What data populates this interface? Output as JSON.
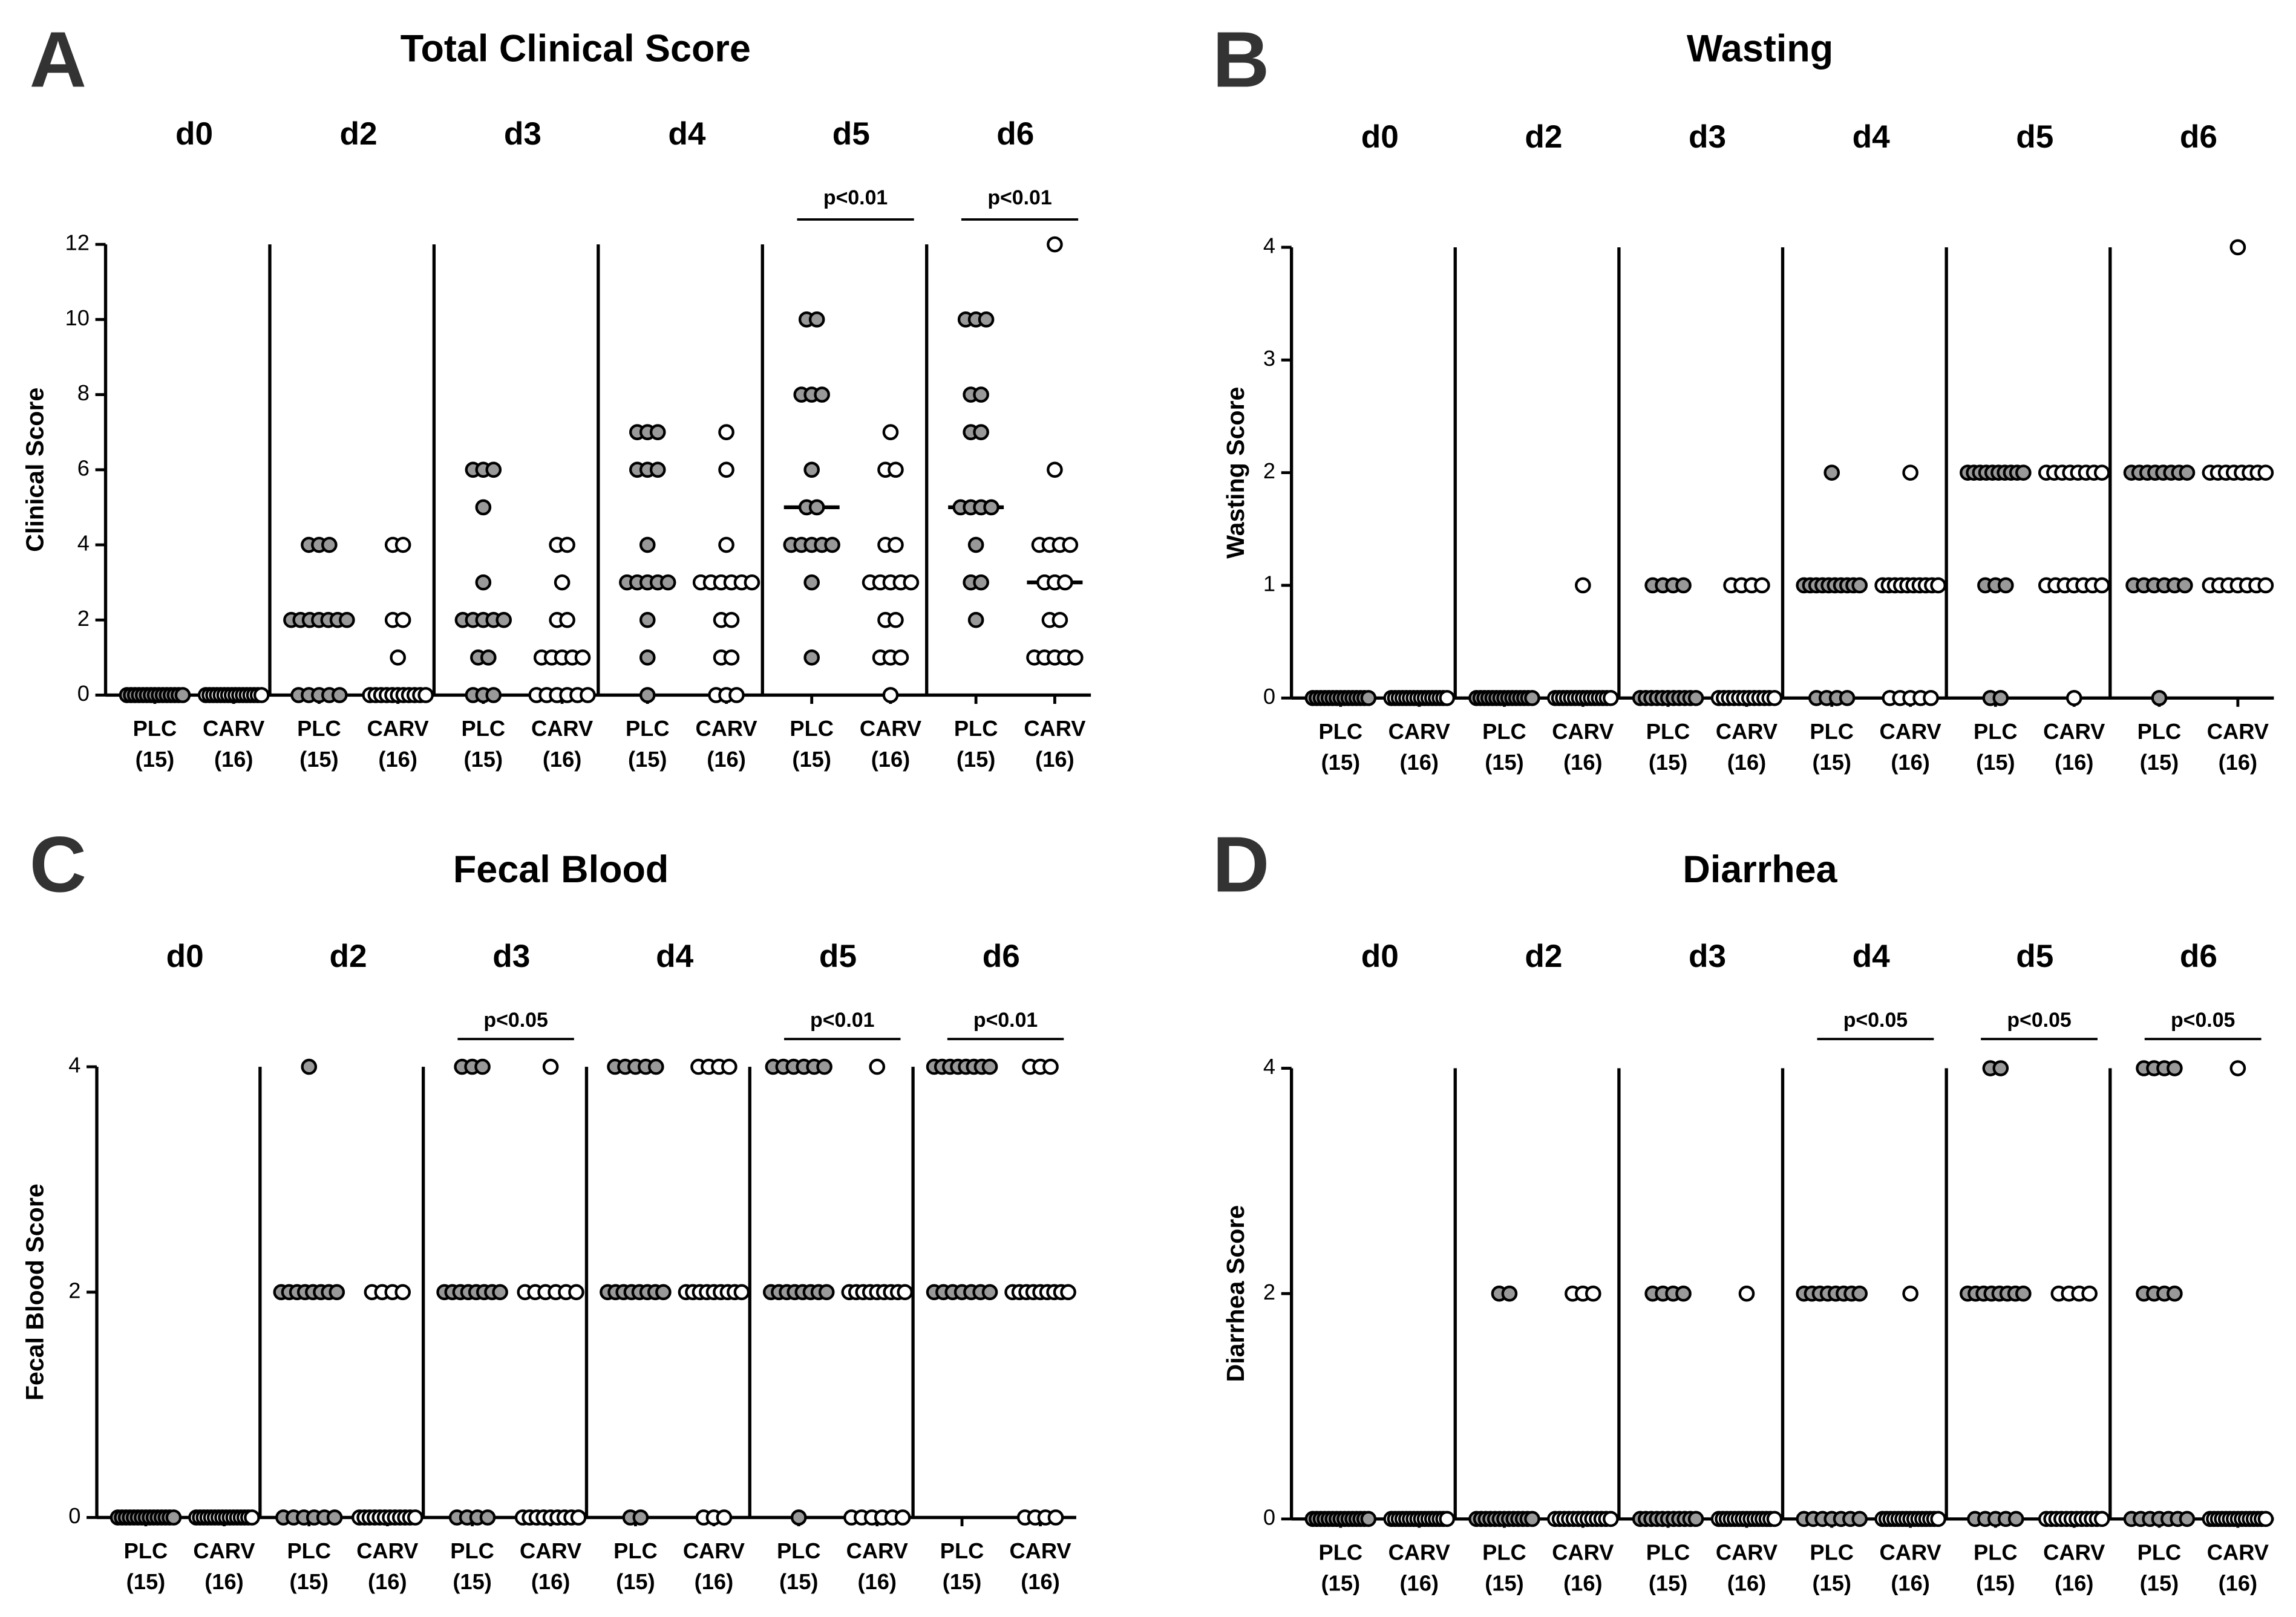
{
  "chart_data": [
    {
      "type": "dot",
      "panel": "A",
      "title": "Total Clinical Score",
      "y_label": "Clinical  Score",
      "categories": [
        "d0",
        "d2",
        "d3",
        "d4",
        "d5",
        "d6"
      ],
      "series": [
        {
          "name": "PLC",
          "n_label": "(15)",
          "color": "#999999",
          "values": [
            [
              0,
              0,
              0,
              0,
              0,
              0,
              0,
              0,
              0,
              0,
              0,
              0,
              0,
              0,
              0
            ],
            [
              4,
              4,
              4,
              2,
              2,
              2,
              2,
              2,
              2,
              2,
              0,
              0,
              0,
              0,
              0
            ],
            [
              6,
              6,
              6,
              5,
              3,
              2,
              2,
              2,
              2,
              2,
              1,
              1,
              0,
              0,
              0
            ],
            [
              7,
              7,
              7,
              6,
              6,
              6,
              4,
              3,
              3,
              3,
              3,
              3,
              2,
              1,
              0
            ],
            [
              10,
              10,
              8,
              8,
              8,
              6,
              5,
              5,
              4,
              4,
              4,
              4,
              4,
              3,
              1
            ],
            [
              10,
              10,
              10,
              8,
              8,
              7,
              7,
              5,
              5,
              5,
              5,
              4,
              3,
              3,
              2
            ]
          ],
          "medians": [
            0,
            2,
            2,
            3,
            5,
            5
          ]
        },
        {
          "name": "CARV",
          "n_label": "(16)",
          "color": "#ffffff",
          "values": [
            [
              0,
              0,
              0,
              0,
              0,
              0,
              0,
              0,
              0,
              0,
              0,
              0,
              0,
              0,
              0,
              0
            ],
            [
              4,
              4,
              2,
              2,
              1,
              0,
              0,
              0,
              0,
              0,
              0,
              0,
              0,
              0,
              0,
              0
            ],
            [
              4,
              4,
              3,
              2,
              2,
              1,
              1,
              1,
              1,
              1,
              0,
              0,
              0,
              0,
              0,
              0
            ],
            [
              7,
              6,
              4,
              3,
              3,
              3,
              3,
              3,
              3,
              2,
              2,
              1,
              1,
              0,
              0,
              0
            ],
            [
              7,
              6,
              6,
              4,
              4,
              3,
              3,
              3,
              3,
              3,
              2,
              2,
              1,
              1,
              1,
              0
            ],
            [
              12,
              6,
              4,
              4,
              4,
              4,
              3,
              3,
              3,
              2,
              2,
              1,
              1,
              1,
              1,
              1
            ]
          ],
          "medians": [
            0,
            0,
            1,
            3,
            3,
            3
          ]
        }
      ],
      "ylim": [
        0,
        12
      ],
      "yticks": [
        0,
        2,
        4,
        6,
        8,
        10,
        12
      ],
      "comparisons": [
        {
          "label": "p<0.01",
          "category": "d5"
        },
        {
          "label": "p<0.01",
          "category": "d6"
        }
      ]
    },
    {
      "type": "dot",
      "panel": "B",
      "title": "Wasting",
      "y_label": "Wasting  Score",
      "categories": [
        "d0",
        "d2",
        "d3",
        "d4",
        "d5",
        "d6"
      ],
      "series": [
        {
          "name": "PLC",
          "n_label": "(15)",
          "color": "#999999",
          "values": [
            [
              0,
              0,
              0,
              0,
              0,
              0,
              0,
              0,
              0,
              0,
              0,
              0,
              0,
              0,
              0
            ],
            [
              0,
              0,
              0,
              0,
              0,
              0,
              0,
              0,
              0,
              0,
              0,
              0,
              0,
              0,
              0
            ],
            [
              1,
              1,
              1,
              1,
              0,
              0,
              0,
              0,
              0,
              0,
              0,
              0,
              0,
              0,
              0
            ],
            [
              2,
              1,
              1,
              1,
              1,
              1,
              1,
              1,
              1,
              1,
              1,
              0,
              0,
              0,
              0
            ],
            [
              2,
              2,
              2,
              2,
              2,
              2,
              2,
              2,
              2,
              2,
              1,
              1,
              1,
              0,
              0
            ],
            [
              2,
              2,
              2,
              2,
              2,
              2,
              2,
              2,
              1,
              1,
              1,
              1,
              1,
              1,
              0
            ]
          ]
        },
        {
          "name": "CARV",
          "n_label": "(16)",
          "color": "#ffffff",
          "values": [
            [
              0,
              0,
              0,
              0,
              0,
              0,
              0,
              0,
              0,
              0,
              0,
              0,
              0,
              0,
              0,
              0
            ],
            [
              1,
              0,
              0,
              0,
              0,
              0,
              0,
              0,
              0,
              0,
              0,
              0,
              0,
              0,
              0,
              0
            ],
            [
              1,
              1,
              1,
              1,
              0,
              0,
              0,
              0,
              0,
              0,
              0,
              0,
              0,
              0,
              0,
              0
            ],
            [
              2,
              1,
              1,
              1,
              1,
              1,
              1,
              1,
              1,
              1,
              1,
              0,
              0,
              0,
              0,
              0
            ],
            [
              2,
              2,
              2,
              2,
              2,
              2,
              2,
              2,
              1,
              1,
              1,
              1,
              1,
              1,
              1,
              0
            ],
            [
              4,
              2,
              2,
              2,
              2,
              2,
              2,
              2,
              2,
              1,
              1,
              1,
              1,
              1,
              1,
              1
            ]
          ]
        }
      ],
      "ylim": [
        0,
        4
      ],
      "yticks": [
        0,
        1,
        2,
        3,
        4
      ],
      "comparisons": []
    },
    {
      "type": "dot",
      "panel": "C",
      "title": "Fecal Blood",
      "y_label": "Fecal Blood Score",
      "categories": [
        "d0",
        "d2",
        "d3",
        "d4",
        "d5",
        "d6"
      ],
      "series": [
        {
          "name": "PLC",
          "n_label": "(15)",
          "color": "#999999",
          "values": [
            [
              0,
              0,
              0,
              0,
              0,
              0,
              0,
              0,
              0,
              0,
              0,
              0,
              0,
              0,
              0
            ],
            [
              4,
              2,
              2,
              2,
              2,
              2,
              2,
              2,
              2,
              0,
              0,
              0,
              0,
              0,
              0
            ],
            [
              4,
              4,
              4,
              2,
              2,
              2,
              2,
              2,
              2,
              2,
              2,
              0,
              0,
              0,
              0
            ],
            [
              4,
              4,
              4,
              4,
              4,
              2,
              2,
              2,
              2,
              2,
              2,
              2,
              2,
              0,
              0
            ],
            [
              4,
              4,
              4,
              4,
              4,
              4,
              2,
              2,
              2,
              2,
              2,
              2,
              2,
              2,
              0
            ],
            [
              4,
              4,
              4,
              4,
              4,
              4,
              4,
              4,
              2,
              2,
              2,
              2,
              2,
              2,
              2
            ]
          ]
        },
        {
          "name": "CARV",
          "n_label": "(16)",
          "color": "#ffffff",
          "values": [
            [
              0,
              0,
              0,
              0,
              0,
              0,
              0,
              0,
              0,
              0,
              0,
              0,
              0,
              0,
              0,
              0
            ],
            [
              2,
              2,
              2,
              2,
              0,
              0,
              0,
              0,
              0,
              0,
              0,
              0,
              0,
              0,
              0,
              0
            ],
            [
              4,
              2,
              2,
              2,
              2,
              2,
              2,
              0,
              0,
              0,
              0,
              0,
              0,
              0,
              0,
              0
            ],
            [
              4,
              4,
              4,
              4,
              2,
              2,
              2,
              2,
              2,
              2,
              2,
              2,
              2,
              0,
              0,
              0
            ],
            [
              4,
              2,
              2,
              2,
              2,
              2,
              2,
              2,
              2,
              2,
              0,
              0,
              0,
              0,
              0,
              0
            ],
            [
              4,
              4,
              4,
              2,
              2,
              2,
              2,
              2,
              2,
              2,
              2,
              2,
              0,
              0,
              0,
              0
            ]
          ]
        }
      ],
      "ylim": [
        0,
        4
      ],
      "yticks": [
        0,
        2,
        4
      ],
      "comparisons": [
        {
          "label": "p<0.05",
          "category": "d3"
        },
        {
          "label": "p<0.01",
          "category": "d5"
        },
        {
          "label": "p<0.01",
          "category": "d6"
        }
      ]
    },
    {
      "type": "dot",
      "panel": "D",
      "title": "Diarrhea",
      "y_label": "Diarrhea Score",
      "categories": [
        "d0",
        "d2",
        "d3",
        "d4",
        "d5",
        "d6"
      ],
      "series": [
        {
          "name": "PLC",
          "n_label": "(15)",
          "color": "#999999",
          "values": [
            [
              0,
              0,
              0,
              0,
              0,
              0,
              0,
              0,
              0,
              0,
              0,
              0,
              0,
              0,
              0
            ],
            [
              2,
              2,
              0,
              0,
              0,
              0,
              0,
              0,
              0,
              0,
              0,
              0,
              0,
              0,
              0
            ],
            [
              2,
              2,
              2,
              2,
              0,
              0,
              0,
              0,
              0,
              0,
              0,
              0,
              0,
              0,
              0
            ],
            [
              2,
              2,
              2,
              2,
              2,
              2,
              2,
              2,
              0,
              0,
              0,
              0,
              0,
              0,
              0
            ],
            [
              4,
              4,
              2,
              2,
              2,
              2,
              2,
              2,
              2,
              2,
              0,
              0,
              0,
              0,
              0
            ],
            [
              4,
              4,
              4,
              4,
              2,
              2,
              2,
              2,
              0,
              0,
              0,
              0,
              0,
              0,
              0
            ]
          ]
        },
        {
          "name": "CARV",
          "n_label": "(16)",
          "color": "#ffffff",
          "values": [
            [
              0,
              0,
              0,
              0,
              0,
              0,
              0,
              0,
              0,
              0,
              0,
              0,
              0,
              0,
              0,
              0
            ],
            [
              2,
              2,
              2,
              0,
              0,
              0,
              0,
              0,
              0,
              0,
              0,
              0,
              0,
              0,
              0,
              0
            ],
            [
              2,
              0,
              0,
              0,
              0,
              0,
              0,
              0,
              0,
              0,
              0,
              0,
              0,
              0,
              0,
              0
            ],
            [
              2,
              0,
              0,
              0,
              0,
              0,
              0,
              0,
              0,
              0,
              0,
              0,
              0,
              0,
              0,
              0
            ],
            [
              2,
              2,
              2,
              2,
              0,
              0,
              0,
              0,
              0,
              0,
              0,
              0,
              0,
              0,
              0,
              0
            ],
            [
              4,
              0,
              0,
              0,
              0,
              0,
              0,
              0,
              0,
              0,
              0,
              0,
              0,
              0,
              0,
              0
            ]
          ]
        }
      ],
      "ylim": [
        0,
        4
      ],
      "yticks": [
        0,
        2,
        4
      ],
      "comparisons": [
        {
          "label": "p<0.05",
          "category": "d4"
        },
        {
          "label": "p<0.05",
          "category": "d5"
        },
        {
          "label": "p<0.05",
          "category": "d6"
        }
      ]
    }
  ]
}
